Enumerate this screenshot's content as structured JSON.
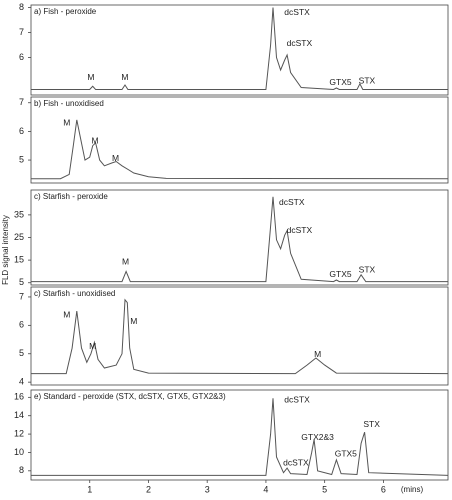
{
  "chart_data": [
    {
      "type": "line",
      "title": "a) Fish - peroxide",
      "color": "#555555",
      "xlim": [
        0,
        7.1
      ],
      "ylim": [
        4.5,
        8.1
      ],
      "yticks": [
        8,
        7,
        6
      ],
      "x": [
        0,
        1.0,
        1.05,
        1.1,
        1.55,
        1.6,
        1.65,
        4.0,
        4.08,
        4.12,
        4.18,
        4.25,
        4.32,
        4.36,
        4.42,
        4.6,
        5.15,
        5.2,
        5.25,
        5.55,
        5.6,
        5.65,
        7.1
      ],
      "values": [
        4.72,
        4.72,
        4.85,
        4.72,
        4.72,
        4.9,
        4.72,
        4.72,
        6.5,
        8.0,
        6.0,
        5.5,
        5.9,
        6.1,
        5.4,
        4.8,
        4.72,
        4.78,
        4.72,
        4.72,
        4.95,
        4.72,
        4.72
      ],
      "annotations": [
        {
          "text": "M",
          "x": 1.02,
          "y": 5.2
        },
        {
          "text": "M",
          "x": 1.6,
          "y": 5.2
        },
        {
          "text": "dcSTX",
          "x": 4.53,
          "y": 7.8
        },
        {
          "text": "dcSTX",
          "x": 4.57,
          "y": 6.55
        },
        {
          "text": "GTX5",
          "x": 5.27,
          "y": 5.0
        },
        {
          "text": "STX",
          "x": 5.72,
          "y": 5.05
        }
      ]
    },
    {
      "type": "line",
      "title": "b) Fish - unoxidised",
      "color": "#555555",
      "xlim": [
        0,
        7.1
      ],
      "ylim": [
        4.2,
        7.2
      ],
      "yticks": [
        7,
        6,
        5
      ],
      "x": [
        0,
        0.5,
        0.65,
        0.72,
        0.78,
        0.84,
        0.92,
        1.0,
        1.05,
        1.1,
        1.17,
        1.25,
        1.38,
        1.45,
        1.55,
        1.75,
        2.0,
        2.3,
        7.1
      ],
      "values": [
        4.35,
        4.35,
        4.5,
        5.5,
        6.4,
        5.8,
        5.0,
        5.1,
        5.5,
        5.6,
        5.0,
        4.8,
        4.9,
        4.95,
        4.8,
        4.55,
        4.42,
        4.36,
        4.35
      ],
      "annotations": [
        {
          "text": "M",
          "x": 0.61,
          "y": 6.29
        },
        {
          "text": "M",
          "x": 1.09,
          "y": 5.66
        },
        {
          "text": "M",
          "x": 1.44,
          "y": 5.04
        }
      ]
    },
    {
      "type": "line",
      "title": "c) Starfish - peroxide",
      "color": "#555555",
      "ylabel": "FLD signal intensity",
      "xlim": [
        0,
        7.1
      ],
      "ylim": [
        4,
        46
      ],
      "yticks": [
        35,
        25,
        15,
        5
      ],
      "x": [
        0,
        1.55,
        1.62,
        1.69,
        4.0,
        4.08,
        4.12,
        4.18,
        4.25,
        4.32,
        4.36,
        4.42,
        4.6,
        5.15,
        5.2,
        5.25,
        5.55,
        5.62,
        5.7,
        7.1
      ],
      "values": [
        5.5,
        5.5,
        10,
        5.5,
        5.5,
        30,
        43,
        24,
        20,
        26,
        28,
        18,
        6.5,
        5.5,
        6.2,
        5.5,
        5.5,
        8.5,
        5.5,
        5.5
      ],
      "annotations": [
        {
          "text": "M",
          "x": 1.61,
          "y": 14
        },
        {
          "text": "dcSTX",
          "x": 4.44,
          "y": 40.3
        },
        {
          "text": "dcSTX",
          "x": 4.57,
          "y": 27.9
        },
        {
          "text": "GTX5",
          "x": 5.27,
          "y": 8.5
        },
        {
          "text": "STX",
          "x": 5.72,
          "y": 10.5
        }
      ]
    },
    {
      "type": "line",
      "title": "c) Starfish - unoxidised",
      "color": "#555555",
      "xlim": [
        0,
        7.1
      ],
      "ylim": [
        3.9,
        7.35
      ],
      "yticks": [
        7,
        6,
        5,
        4
      ],
      "x": [
        0,
        0.6,
        0.7,
        0.78,
        0.86,
        0.95,
        1.02,
        1.08,
        1.14,
        1.25,
        1.45,
        1.55,
        1.6,
        1.64,
        1.68,
        1.75,
        2.0,
        4.5,
        4.7,
        4.85,
        5.0,
        5.2,
        7.1
      ],
      "values": [
        4.3,
        4.3,
        5.2,
        6.5,
        5.2,
        4.7,
        5.0,
        5.4,
        4.8,
        4.5,
        4.6,
        5.0,
        6.9,
        6.8,
        5.2,
        4.45,
        4.32,
        4.3,
        4.6,
        4.85,
        4.6,
        4.32,
        4.3
      ],
      "annotations": [
        {
          "text": "M",
          "x": 0.61,
          "y": 6.36
        },
        {
          "text": "M",
          "x": 1.05,
          "y": 5.24
        },
        {
          "text": "M",
          "x": 1.75,
          "y": 6.12
        },
        {
          "text": "M",
          "x": 4.88,
          "y": 4.97
        }
      ]
    },
    {
      "type": "line",
      "title": "e) Standard - peroxide (STX, dcSTX, GTX5, GTX2&3)",
      "color": "#555555",
      "xlabel": "(mins)",
      "xlim": [
        0,
        7.1
      ],
      "xticks": [
        1,
        2,
        3,
        4,
        5,
        6
      ],
      "ylim": [
        7,
        16.8
      ],
      "yticks": [
        16,
        14,
        12,
        10,
        8
      ],
      "x": [
        0,
        4.0,
        4.08,
        4.12,
        4.18,
        4.3,
        4.36,
        4.42,
        4.7,
        4.78,
        4.82,
        4.88,
        5.12,
        5.2,
        5.28,
        5.55,
        5.62,
        5.68,
        5.75,
        7.1
      ],
      "values": [
        7.5,
        7.5,
        12,
        15.9,
        9.5,
        7.8,
        8.3,
        7.7,
        7.6,
        10,
        11.4,
        8.0,
        7.6,
        9.2,
        7.7,
        7.6,
        11,
        12.2,
        7.8,
        7.5
      ],
      "annotations": [
        {
          "text": "dcSTX",
          "x": 4.53,
          "y": 15.7
        },
        {
          "text": "dcSTX",
          "x": 4.51,
          "y": 8.85
        },
        {
          "text": "GTX2&3",
          "x": 4.88,
          "y": 11.6
        },
        {
          "text": "GTX5",
          "x": 5.36,
          "y": 9.8
        },
        {
          "text": "STX",
          "x": 5.8,
          "y": 13.0
        }
      ]
    }
  ]
}
